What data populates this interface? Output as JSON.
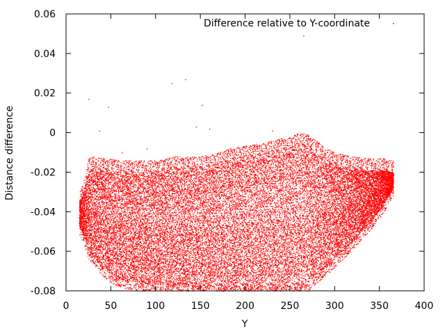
{
  "chart_data": {
    "type": "scatter",
    "xlabel": "Y",
    "ylabel": "Distance difference",
    "xlim": [
      0,
      400
    ],
    "ylim": [
      -0.08,
      0.06
    ],
    "x_ticks": [
      "0",
      "50",
      "100",
      "150",
      "200",
      "250",
      "300",
      "350",
      "400"
    ],
    "y_ticks": [
      "-0.08",
      "-0.06",
      "-0.04",
      "-0.02",
      "0",
      "0.02",
      "0.04",
      "0.06"
    ],
    "grid": false,
    "legend_position": "top-right",
    "series": [
      {
        "name": "Difference relative to Y-coordinate",
        "color": "#ff0000",
        "marker": "dot",
        "envelope": [
          {
            "x": 15,
            "y_low": -0.048,
            "y_high": -0.035
          },
          {
            "x": 20,
            "y_low": -0.052,
            "y_high": -0.03
          },
          {
            "x": 25,
            "y_low": -0.06,
            "y_high": -0.019
          },
          {
            "x": 30,
            "y_low": -0.062,
            "y_high": -0.018
          },
          {
            "x": 40,
            "y_low": -0.068,
            "y_high": -0.019
          },
          {
            "x": 50,
            "y_low": -0.072,
            "y_high": -0.019
          },
          {
            "x": 60,
            "y_low": -0.074,
            "y_high": -0.02
          },
          {
            "x": 80,
            "y_low": -0.076,
            "y_high": -0.02
          },
          {
            "x": 100,
            "y_low": -0.077,
            "y_high": -0.02
          },
          {
            "x": 120,
            "y_low": -0.078,
            "y_high": -0.018
          },
          {
            "x": 150,
            "y_low": -0.079,
            "y_high": -0.018
          },
          {
            "x": 170,
            "y_low": -0.08,
            "y_high": -0.016
          },
          {
            "x": 190,
            "y_low": -0.08,
            "y_high": -0.013
          },
          {
            "x": 210,
            "y_low": -0.08,
            "y_high": -0.012
          },
          {
            "x": 230,
            "y_low": -0.08,
            "y_high": -0.01
          },
          {
            "x": 250,
            "y_low": -0.08,
            "y_high": -0.008
          },
          {
            "x": 260,
            "y_low": -0.08,
            "y_high": -0.006
          },
          {
            "x": 270,
            "y_low": -0.076,
            "y_high": -0.007
          },
          {
            "x": 280,
            "y_low": -0.072,
            "y_high": -0.01
          },
          {
            "x": 290,
            "y_low": -0.068,
            "y_high": -0.014
          },
          {
            "x": 300,
            "y_low": -0.064,
            "y_high": -0.016
          },
          {
            "x": 320,
            "y_low": -0.055,
            "y_high": -0.018
          },
          {
            "x": 340,
            "y_low": -0.045,
            "y_high": -0.019
          },
          {
            "x": 355,
            "y_low": -0.036,
            "y_high": -0.019
          },
          {
            "x": 365,
            "y_low": -0.028,
            "y_high": -0.02
          }
        ],
        "outliers": [
          {
            "x": 25,
            "y": 0.017
          },
          {
            "x": 47,
            "y": 0.013
          },
          {
            "x": 118,
            "y": 0.025
          },
          {
            "x": 133,
            "y": 0.027
          },
          {
            "x": 152,
            "y": 0.014
          },
          {
            "x": 265,
            "y": 0.049
          },
          {
            "x": 37,
            "y": 0.001
          },
          {
            "x": 145,
            "y": 0.003
          },
          {
            "x": 160,
            "y": 0.002
          },
          {
            "x": 62,
            "y": -0.01
          },
          {
            "x": 90,
            "y": -0.008
          },
          {
            "x": 230,
            "y": 0.001
          }
        ]
      }
    ]
  }
}
